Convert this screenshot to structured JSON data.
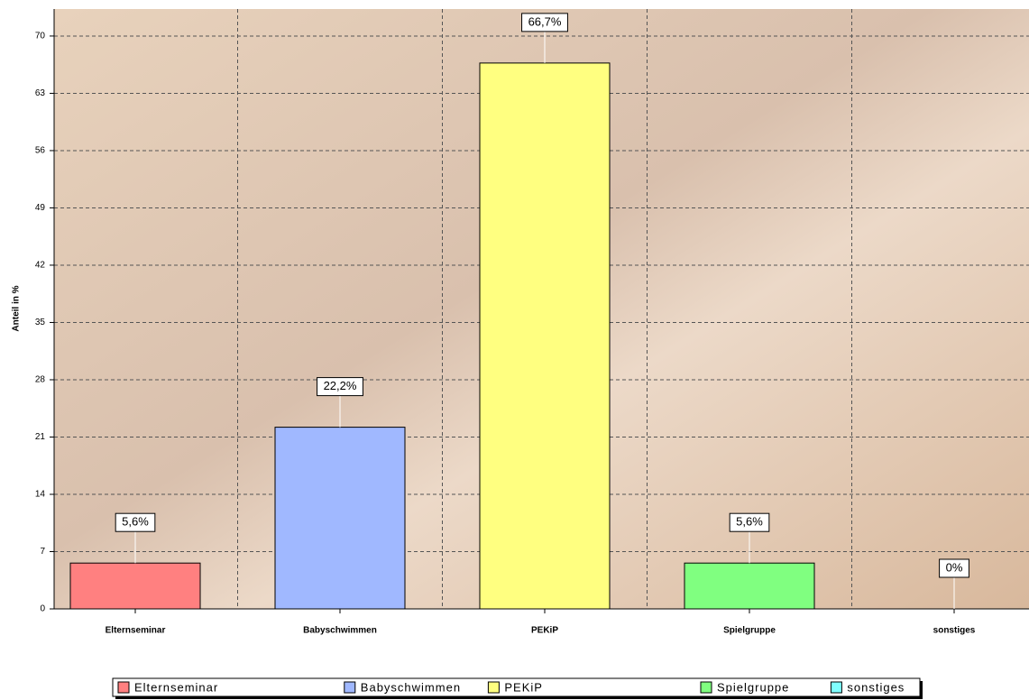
{
  "chart_data": {
    "type": "bar",
    "y_label": "Anteil in %",
    "categories": [
      "Elternseminar",
      "Babyschwimmen",
      "PEKiP",
      "Spielgruppe",
      "sonstiges"
    ],
    "values": [
      5.6,
      22.2,
      66.7,
      5.6,
      0
    ],
    "value_labels": [
      "5,6%",
      "22,2%",
      "66,7%",
      "5,6%",
      "0%"
    ],
    "colors": [
      "#ff8080",
      "#a0b8ff",
      "#ffff80",
      "#80ff80",
      "#80ffff"
    ],
    "ylim": [
      0,
      73.3
    ],
    "yticks": [
      0,
      7,
      14,
      21,
      28,
      35,
      42,
      49,
      56,
      63,
      70
    ],
    "grid": true,
    "legend": "bottom"
  }
}
